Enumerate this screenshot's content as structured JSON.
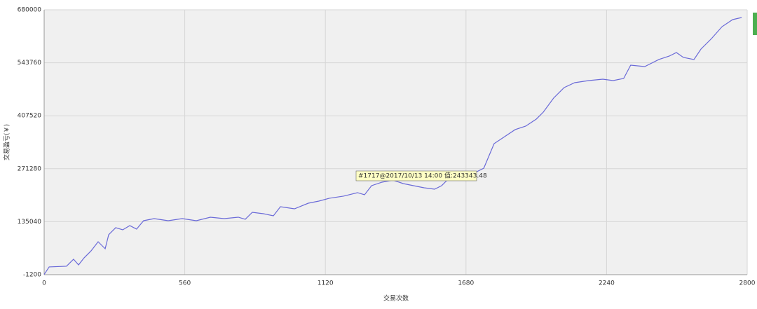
{
  "chart_data": {
    "type": "line",
    "x_label": "交易次数",
    "y_label": "交易盈亏(￥)",
    "annotation": "#1717@2017/10/13 14:00 值:243343.48",
    "xlim": [
      0,
      2800
    ],
    "xticks": [
      0,
      560,
      1120,
      1680,
      2240,
      2800
    ],
    "ylim": [
      -1200,
      680000
    ],
    "yticks": [
      -1200,
      135040,
      271280,
      407520,
      543760,
      680000
    ],
    "grid": true,
    "series": [
      {
        "color": "#6a6ad8",
        "x": [
          0,
          20,
          89,
          103,
          117,
          137,
          159,
          187,
          215,
          243,
          257,
          285,
          313,
          341,
          368,
          396,
          438,
          494,
          550,
          606,
          662,
          717,
          773,
          801,
          829,
          873,
          913,
          941,
          997,
          1052,
          1094,
          1136,
          1192,
          1248,
          1276,
          1304,
          1346,
          1388,
          1430,
          1471,
          1513,
          1555,
          1583,
          1611,
          1667,
          1751,
          1792,
          1834,
          1876,
          1918,
          1960,
          1988,
          2029,
          2071,
          2113,
          2169,
          2225,
          2266,
          2308,
          2336,
          2392,
          2448,
          2490,
          2518,
          2546,
          2588,
          2616,
          2658,
          2700,
          2742,
          2778
        ],
        "values": [
          -700,
          18700,
          20500,
          29500,
          38500,
          24000,
          42000,
          60100,
          83500,
          65500,
          101600,
          119600,
          114200,
          125000,
          116000,
          137600,
          143000,
          137600,
          143000,
          137600,
          146600,
          143000,
          146600,
          141200,
          159200,
          155600,
          150200,
          173600,
          168200,
          182600,
          188000,
          195300,
          200700,
          209700,
          204300,
          227700,
          236700,
          242100,
          233100,
          227700,
          222300,
          218700,
          227700,
          245700,
          245700,
          272700,
          335800,
          353800,
          371900,
          380900,
          398900,
          416900,
          453000,
          480000,
          492600,
          498000,
          501600,
          498000,
          503400,
          537600,
          534000,
          552100,
          561100,
          570100,
          557500,
          552100,
          579100,
          606100,
          636700,
          654800,
          660200
        ]
      }
    ]
  }
}
